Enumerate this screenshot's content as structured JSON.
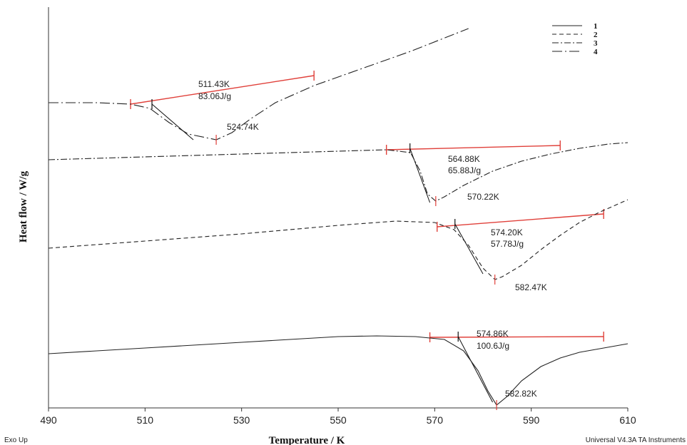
{
  "chart_data": {
    "type": "line",
    "xlabel": "Temperature / K",
    "ylabel": "Heat flow / W/g",
    "xlim": [
      490,
      610
    ],
    "xticks": [
      490,
      510,
      530,
      550,
      570,
      590,
      610
    ],
    "grid": false,
    "legend_placement": "top-right",
    "footer_left": "Exo Up",
    "footer_right": "Universal V4.3A TA Instruments",
    "series": [
      {
        "name": "1",
        "style": "solid",
        "x": [
          490,
          510,
          530,
          550,
          558,
          566,
          572,
          576,
          579,
          581,
          582.82,
          585,
          588,
          592,
          596,
          600,
          605,
          610
        ],
        "y": [
          0.36,
          0.4,
          0.44,
          0.48,
          0.485,
          0.48,
          0.46,
          0.38,
          0.24,
          0.1,
          0.0,
          0.06,
          0.17,
          0.27,
          0.33,
          0.37,
          0.4,
          0.43
        ]
      },
      {
        "name": "2",
        "style": "dashed",
        "x": [
          490,
          510,
          530,
          550,
          562,
          570,
          574,
          577,
          580,
          582.47,
          584,
          588,
          592,
          596,
          600,
          604,
          608,
          610
        ],
        "y": [
          1.1,
          1.15,
          1.2,
          1.26,
          1.29,
          1.28,
          1.23,
          1.12,
          0.96,
          0.88,
          0.9,
          0.98,
          1.09,
          1.19,
          1.28,
          1.35,
          1.41,
          1.44
        ]
      },
      {
        "name": "3",
        "style": "dash-dot",
        "x": [
          490,
          510,
          530,
          550,
          560,
          565,
          567,
          568.5,
          570.22,
          572,
          576,
          582,
          588,
          594,
          600,
          606,
          610
        ],
        "y": [
          1.72,
          1.74,
          1.76,
          1.78,
          1.79,
          1.77,
          1.64,
          1.48,
          1.43,
          1.46,
          1.54,
          1.64,
          1.71,
          1.76,
          1.8,
          1.83,
          1.84
        ]
      },
      {
        "name": "4",
        "style": "long-dash-dot",
        "x": [
          490,
          500,
          507,
          511,
          515,
          519,
          524.74,
          528,
          532,
          537,
          545,
          555,
          565,
          577
        ],
        "y": [
          2.12,
          2.12,
          2.11,
          2.08,
          1.98,
          1.9,
          1.86,
          1.91,
          2.01,
          2.12,
          2.24,
          2.36,
          2.48,
          2.64
        ]
      }
    ],
    "annotations": [
      {
        "series": "4",
        "onset": "511.43K",
        "enthalpy": "83.06J/g",
        "peak": "524.74K"
      },
      {
        "series": "3",
        "onset": "564.88K",
        "enthalpy": "65.88J/g",
        "peak": "570.22K"
      },
      {
        "series": "2",
        "onset": "574.20K",
        "enthalpy": "57.78J/g",
        "peak": "582.47K"
      },
      {
        "series": "1",
        "onset": "574.86K",
        "enthalpy": "100.6J/g",
        "peak": "582.82K"
      }
    ],
    "baselines": [
      {
        "series": "4",
        "x": [
          507,
          545
        ],
        "y": [
          2.11,
          2.31
        ]
      },
      {
        "series": "3",
        "x": [
          560,
          596
        ],
        "y": [
          1.79,
          1.82
        ]
      },
      {
        "series": "2",
        "x": [
          570.5,
          605
        ],
        "y": [
          1.25,
          1.34
        ]
      },
      {
        "series": "1",
        "x": [
          569,
          605
        ],
        "y": [
          0.475,
          0.48
        ]
      }
    ],
    "onset_tangents": [
      {
        "series": "4",
        "x": [
          511.43,
          520
        ],
        "y": [
          2.11,
          1.86
        ]
      },
      {
        "series": "3",
        "x": [
          564.88,
          569
        ],
        "y": [
          1.8,
          1.42
        ]
      },
      {
        "series": "2",
        "x": [
          574.2,
          580
        ],
        "y": [
          1.27,
          0.92
        ]
      },
      {
        "series": "1",
        "x": [
          574.86,
          582
        ],
        "y": [
          0.48,
          0.02
        ]
      }
    ]
  }
}
